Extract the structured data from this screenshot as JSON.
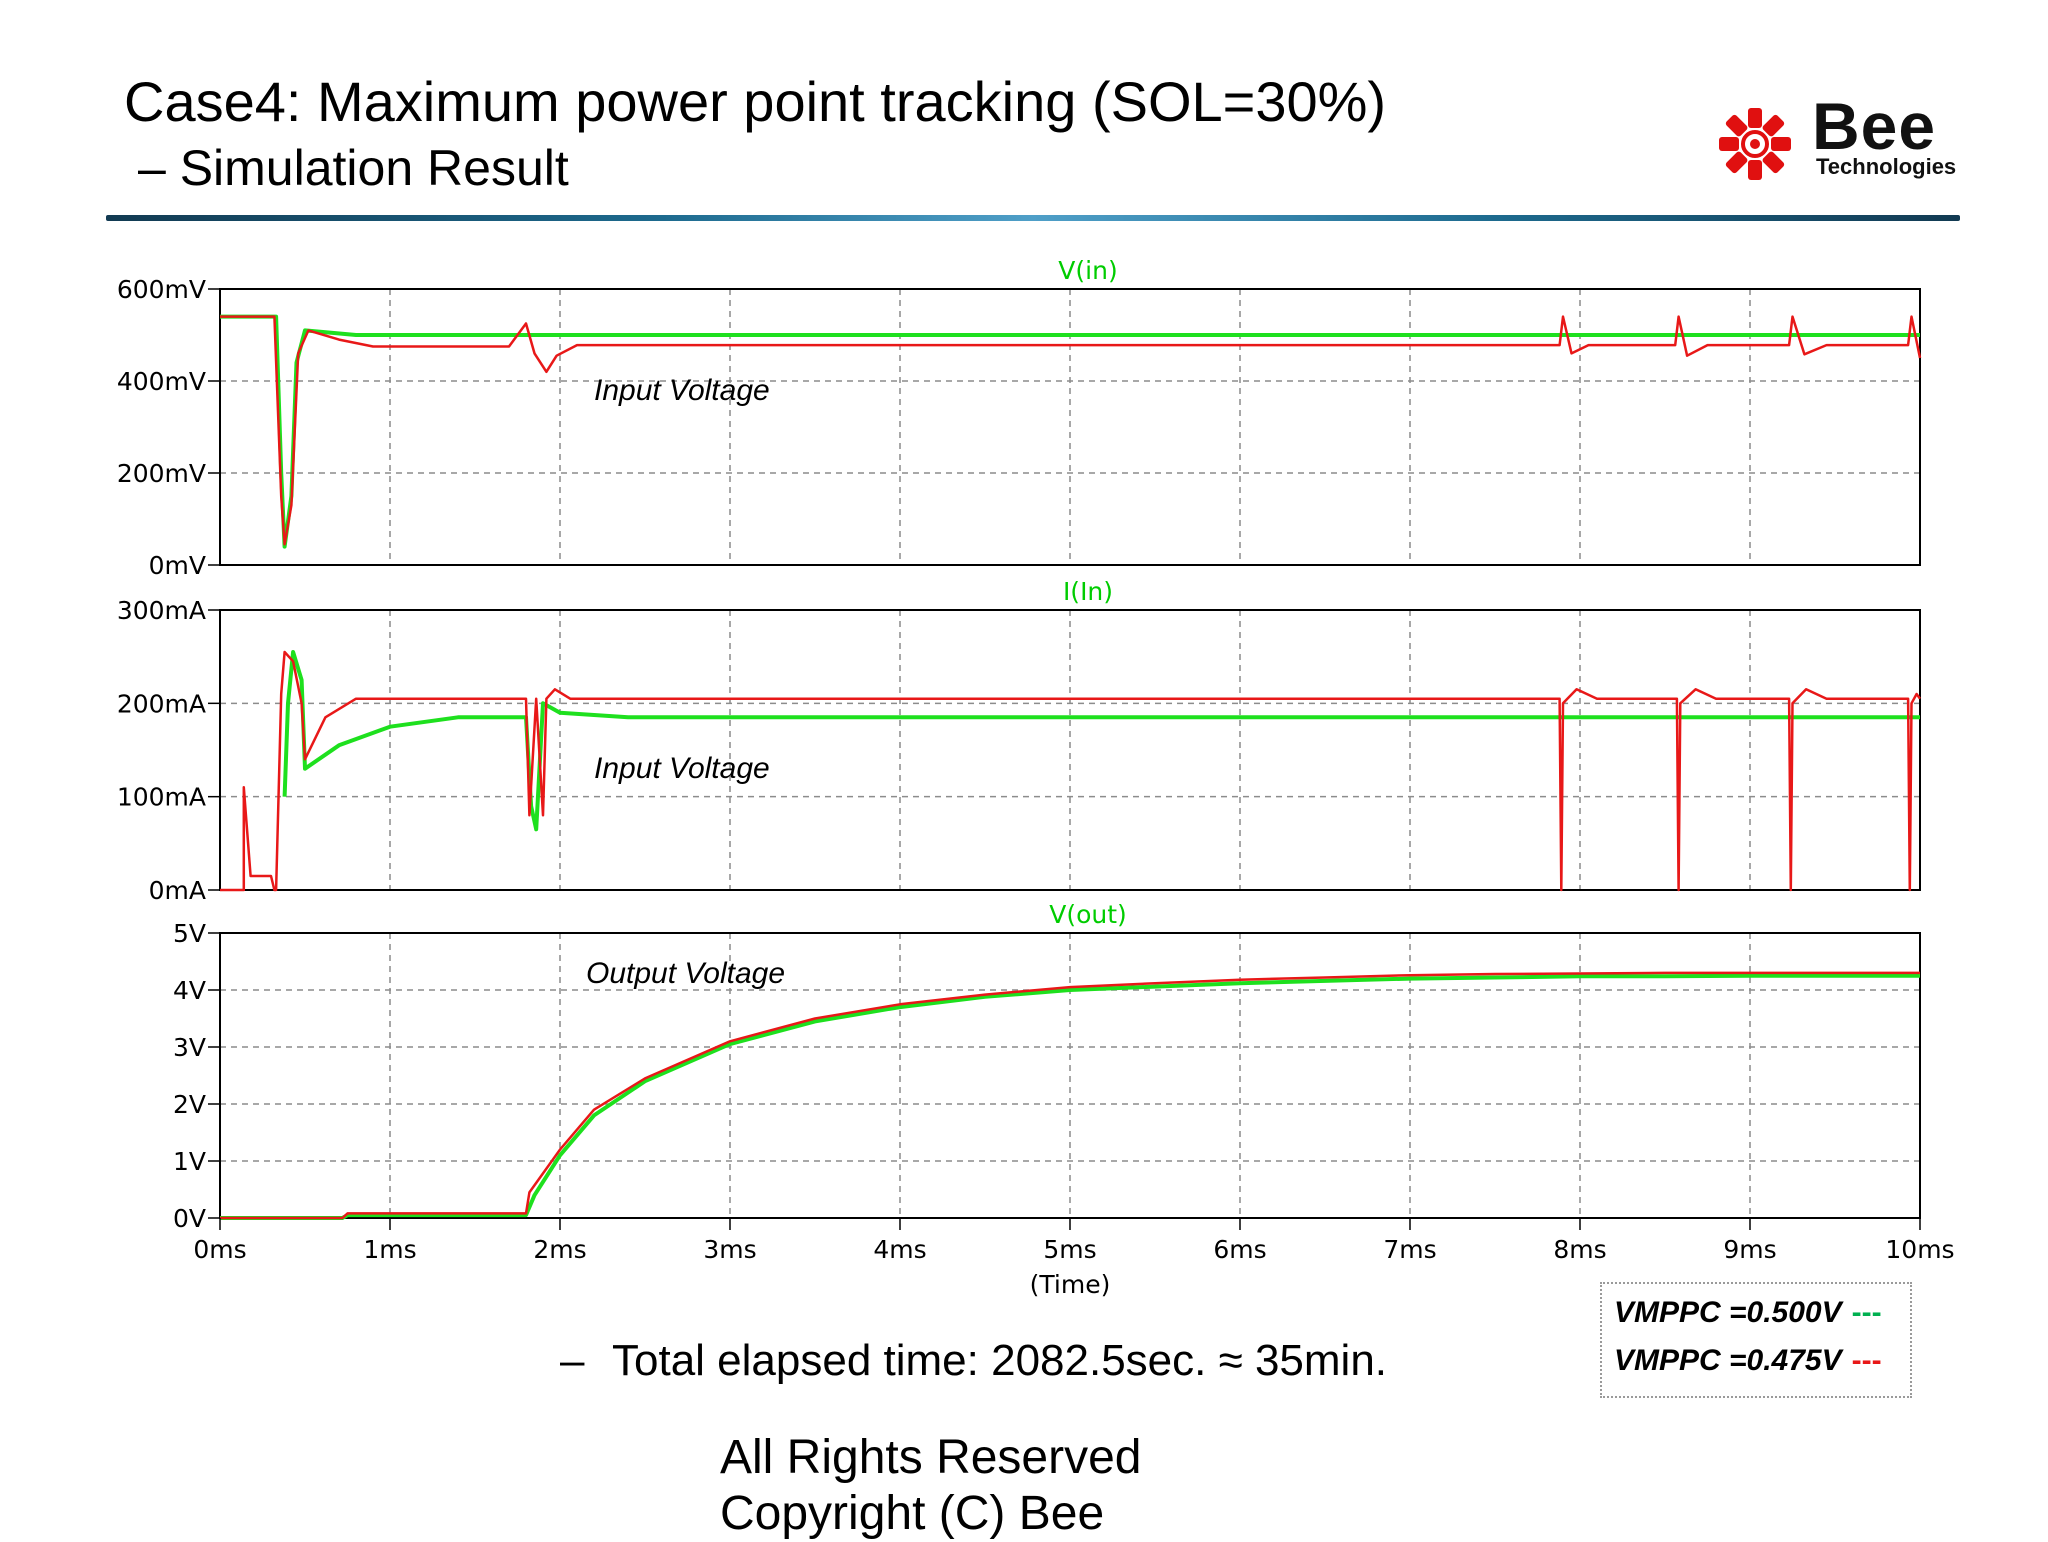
{
  "slide": {
    "title": "Case4: Maximum power point tracking (SOL=30%)",
    "subtitle": "– Simulation Result",
    "elapsed_bullet": "–",
    "elapsed_text": "Total elapsed time: 2082.5sec. ≈ 35min.",
    "footer_line1": "All Rights Reserved",
    "footer_line2": "Copyright (C) Bee"
  },
  "logo": {
    "word": "Bee",
    "sub": "Technologies",
    "color": "#e01010"
  },
  "colors": {
    "green": "#1ee01e",
    "red": "#e81818",
    "grid": "#8c8c8c",
    "title_green": "#00cc00"
  },
  "legend": {
    "items": [
      {
        "label": "VMPPC =0.500V",
        "swatch": "---",
        "color": "#00b050"
      },
      {
        "label": "VMPPC =0.475V",
        "swatch": "---",
        "color": "#e81818"
      }
    ]
  },
  "chart_data": [
    {
      "type": "line",
      "title": "V(in)",
      "annotation": "Input Voltage",
      "x_range": [
        0,
        10
      ],
      "ylim": [
        0,
        600
      ],
      "y_ticks": [
        "0mV",
        "200mV",
        "400mV",
        "600mV"
      ],
      "y_tick_values": [
        0,
        200,
        400,
        600
      ],
      "grid": true,
      "series": [
        {
          "color": "green",
          "points": [
            [
              0,
              540
            ],
            [
              0.33,
              540
            ],
            [
              0.36,
              200
            ],
            [
              0.38,
              40
            ],
            [
              0.42,
              150
            ],
            [
              0.45,
              440
            ],
            [
              0.5,
              510
            ],
            [
              0.8,
              500
            ],
            [
              1.2,
              500
            ],
            [
              1.9,
              500
            ],
            [
              3,
              500
            ],
            [
              6,
              500
            ],
            [
              8,
              500
            ],
            [
              10,
              500
            ]
          ]
        },
        {
          "color": "red",
          "points": [
            [
              0,
              540
            ],
            [
              0.32,
              540
            ],
            [
              0.36,
              150
            ],
            [
              0.38,
              45
            ],
            [
              0.42,
              130
            ],
            [
              0.46,
              460
            ],
            [
              0.52,
              510
            ],
            [
              0.7,
              490
            ],
            [
              0.9,
              475
            ],
            [
              1.7,
              475
            ],
            [
              1.8,
              525
            ],
            [
              1.85,
              460
            ],
            [
              1.92,
              420
            ],
            [
              1.98,
              455
            ],
            [
              2.1,
              478
            ],
            [
              7.88,
              478
            ],
            [
              7.9,
              540
            ],
            [
              7.95,
              460
            ],
            [
              8.05,
              478
            ],
            [
              8.56,
              478
            ],
            [
              8.58,
              540
            ],
            [
              8.63,
              455
            ],
            [
              8.75,
              478
            ],
            [
              9.23,
              478
            ],
            [
              9.25,
              540
            ],
            [
              9.32,
              458
            ],
            [
              9.45,
              478
            ],
            [
              9.93,
              478
            ],
            [
              9.95,
              540
            ],
            [
              10,
              450
            ]
          ]
        }
      ]
    },
    {
      "type": "line",
      "title": "I(In)",
      "annotation": "Input Voltage",
      "x_range": [
        0,
        10
      ],
      "ylim": [
        0,
        300
      ],
      "y_ticks": [
        "0mA",
        "100mA",
        "200mA",
        "300mA"
      ],
      "y_tick_values": [
        0,
        100,
        200,
        300
      ],
      "grid": true,
      "series": [
        {
          "color": "green",
          "points": [
            [
              0.38,
              100
            ],
            [
              0.4,
              200
            ],
            [
              0.43,
              255
            ],
            [
              0.48,
              225
            ],
            [
              0.5,
              130
            ],
            [
              0.7,
              155
            ],
            [
              1.0,
              175
            ],
            [
              1.4,
              185
            ],
            [
              1.8,
              185
            ],
            [
              1.83,
              90
            ],
            [
              1.86,
              65
            ],
            [
              1.9,
              200
            ],
            [
              2.0,
              190
            ],
            [
              2.4,
              185
            ],
            [
              10,
              185
            ]
          ]
        },
        {
          "color": "red",
          "points": [
            [
              0,
              0
            ],
            [
              0.14,
              0
            ],
            [
              0.14,
              110
            ],
            [
              0.18,
              15
            ],
            [
              0.3,
              15
            ],
            [
              0.32,
              0
            ],
            [
              0.33,
              0
            ],
            [
              0.36,
              210
            ],
            [
              0.38,
              255
            ],
            [
              0.43,
              245
            ],
            [
              0.48,
              200
            ],
            [
              0.5,
              140
            ],
            [
              0.62,
              185
            ],
            [
              0.8,
              205
            ],
            [
              1.0,
              205
            ],
            [
              1.8,
              205
            ],
            [
              1.82,
              80
            ],
            [
              1.86,
              205
            ],
            [
              1.9,
              80
            ],
            [
              1.92,
              205
            ],
            [
              1.97,
              215
            ],
            [
              2.06,
              205
            ],
            [
              7.88,
              205
            ],
            [
              7.89,
              0
            ],
            [
              7.9,
              200
            ],
            [
              7.98,
              215
            ],
            [
              8.1,
              205
            ],
            [
              8.57,
              205
            ],
            [
              8.58,
              0
            ],
            [
              8.59,
              200
            ],
            [
              8.68,
              215
            ],
            [
              8.8,
              205
            ],
            [
              9.23,
              205
            ],
            [
              9.24,
              0
            ],
            [
              9.25,
              200
            ],
            [
              9.33,
              215
            ],
            [
              9.45,
              205
            ],
            [
              9.93,
              205
            ],
            [
              9.94,
              0
            ],
            [
              9.95,
              200
            ],
            [
              9.98,
              210
            ],
            [
              10,
              205
            ]
          ]
        }
      ]
    },
    {
      "type": "line",
      "title": "V(out)",
      "annotation": "Output Voltage",
      "xlabel": "(Time)",
      "x_range": [
        0,
        10
      ],
      "x_ticks": [
        "0ms",
        "1ms",
        "2ms",
        "3ms",
        "4ms",
        "5ms",
        "6ms",
        "7ms",
        "8ms",
        "9ms",
        "10ms"
      ],
      "ylim": [
        0,
        5
      ],
      "y_ticks": [
        "0V",
        "1V",
        "2V",
        "3V",
        "4V",
        "5V"
      ],
      "y_tick_values": [
        0,
        1,
        2,
        3,
        4,
        5
      ],
      "grid": true,
      "series": [
        {
          "color": "green",
          "points": [
            [
              0,
              0
            ],
            [
              0.72,
              0
            ],
            [
              0.75,
              0.05
            ],
            [
              1.8,
              0.05
            ],
            [
              1.85,
              0.4
            ],
            [
              2.0,
              1.1
            ],
            [
              2.2,
              1.8
            ],
            [
              2.5,
              2.4
            ],
            [
              3.0,
              3.05
            ],
            [
              3.5,
              3.45
            ],
            [
              4.0,
              3.7
            ],
            [
              4.5,
              3.88
            ],
            [
              5.0,
              4.0
            ],
            [
              5.5,
              4.06
            ],
            [
              6.0,
              4.12
            ],
            [
              6.5,
              4.16
            ],
            [
              7.0,
              4.2
            ],
            [
              7.5,
              4.22
            ],
            [
              8.0,
              4.24
            ],
            [
              8.5,
              4.24
            ],
            [
              9.0,
              4.25
            ],
            [
              10,
              4.25
            ]
          ]
        },
        {
          "color": "red",
          "points": [
            [
              0,
              0
            ],
            [
              0.72,
              0
            ],
            [
              0.75,
              0.08
            ],
            [
              1.8,
              0.08
            ],
            [
              1.82,
              0.45
            ],
            [
              2.0,
              1.2
            ],
            [
              2.2,
              1.9
            ],
            [
              2.5,
              2.45
            ],
            [
              3.0,
              3.1
            ],
            [
              3.5,
              3.5
            ],
            [
              4.0,
              3.75
            ],
            [
              4.5,
              3.92
            ],
            [
              5.0,
              4.05
            ],
            [
              5.5,
              4.12
            ],
            [
              6.0,
              4.18
            ],
            [
              6.5,
              4.22
            ],
            [
              7.0,
              4.26
            ],
            [
              7.5,
              4.28
            ],
            [
              8.0,
              4.29
            ],
            [
              8.5,
              4.3
            ],
            [
              9.0,
              4.3
            ],
            [
              10,
              4.3
            ]
          ]
        }
      ]
    }
  ]
}
